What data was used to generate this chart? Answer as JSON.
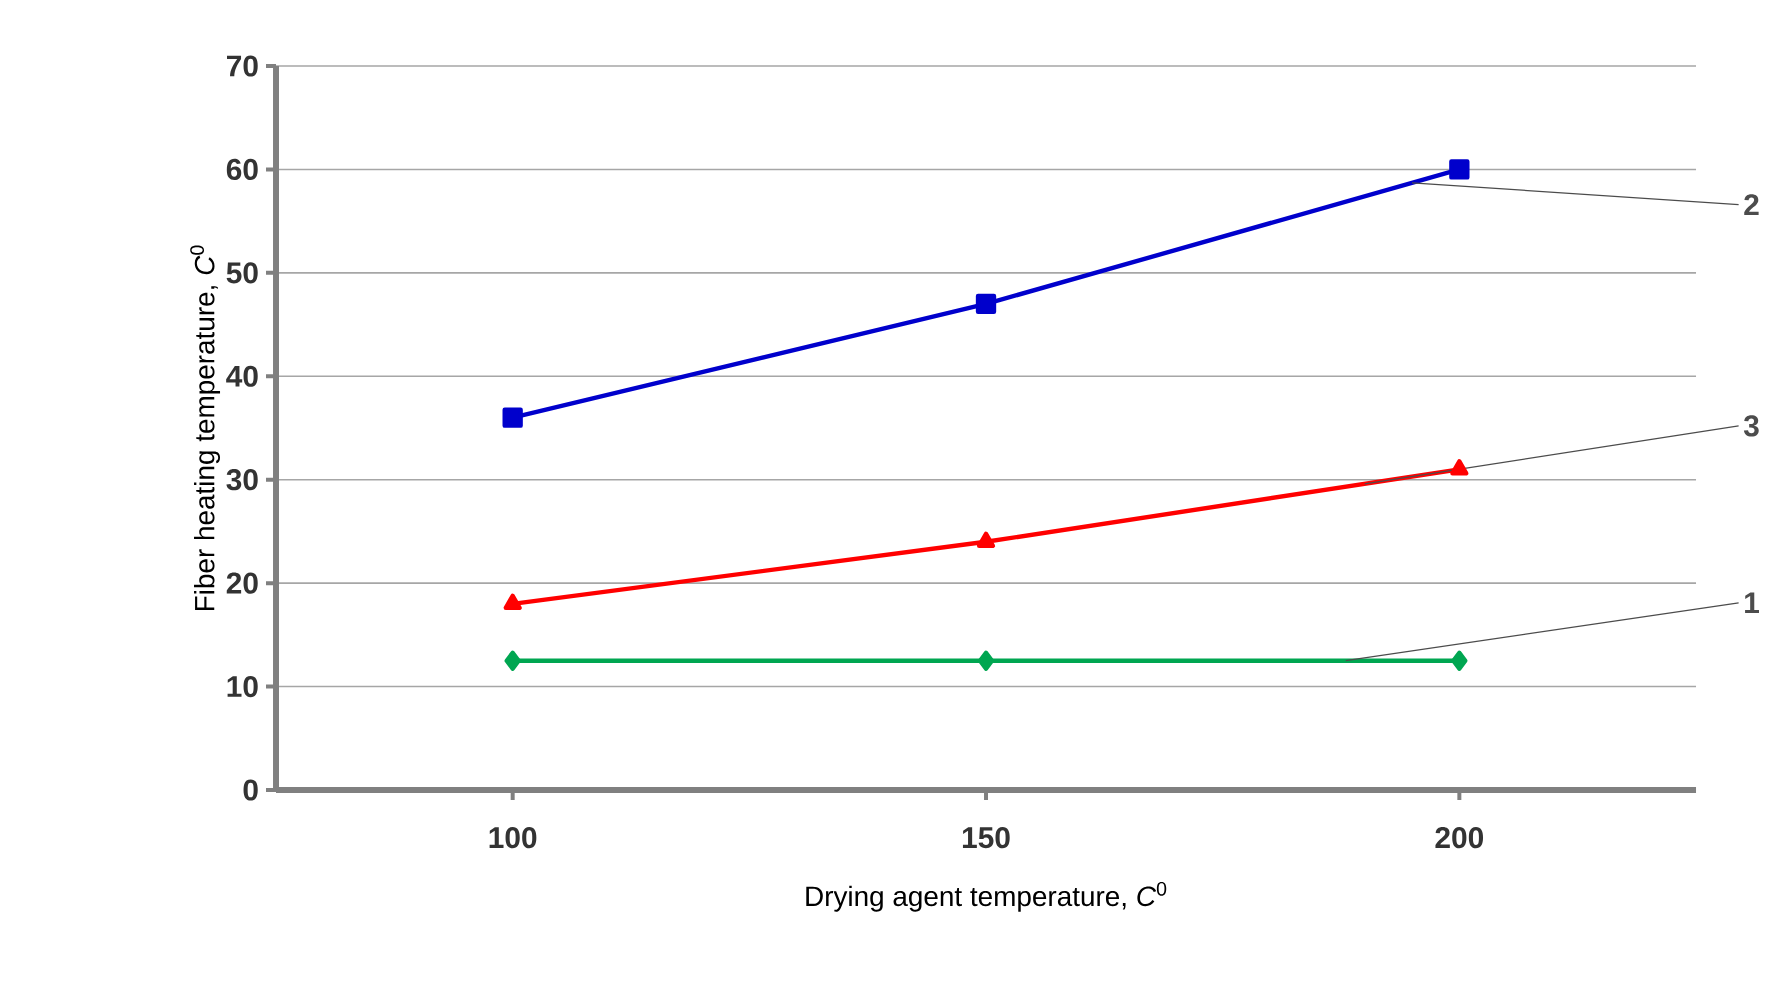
{
  "chart_data": {
    "type": "line",
    "xlabel": "Drying agent temperature, *C*$^{0}$",
    "ylabel": "Fiber heating temperature, *C*$^{0}$",
    "x": [
      100,
      150,
      200
    ],
    "xlim": [
      75,
      225
    ],
    "xticks": [
      100,
      150,
      200
    ],
    "ylim": [
      0,
      70
    ],
    "yticks": [
      0,
      10,
      20,
      30,
      40,
      50,
      60,
      70
    ],
    "grid": "y",
    "series": [
      {
        "color": "#0000cc",
        "marker": "square",
        "values": [
          36,
          47,
          60
        ]
      },
      {
        "color": "#ff0000",
        "marker": "triangle",
        "values": [
          18,
          24,
          31
        ]
      },
      {
        "color": "#00a651",
        "marker": "diamond",
        "values": [
          12.5,
          12.5,
          12.5
        ]
      }
    ],
    "annotations": [
      {
        "text": "2",
        "x": 195,
        "y": 58.7
      },
      {
        "text": "3",
        "x": 190,
        "y": 29.6
      },
      {
        "text": "1",
        "x": 188,
        "y": 12.5
      }
    ]
  }
}
